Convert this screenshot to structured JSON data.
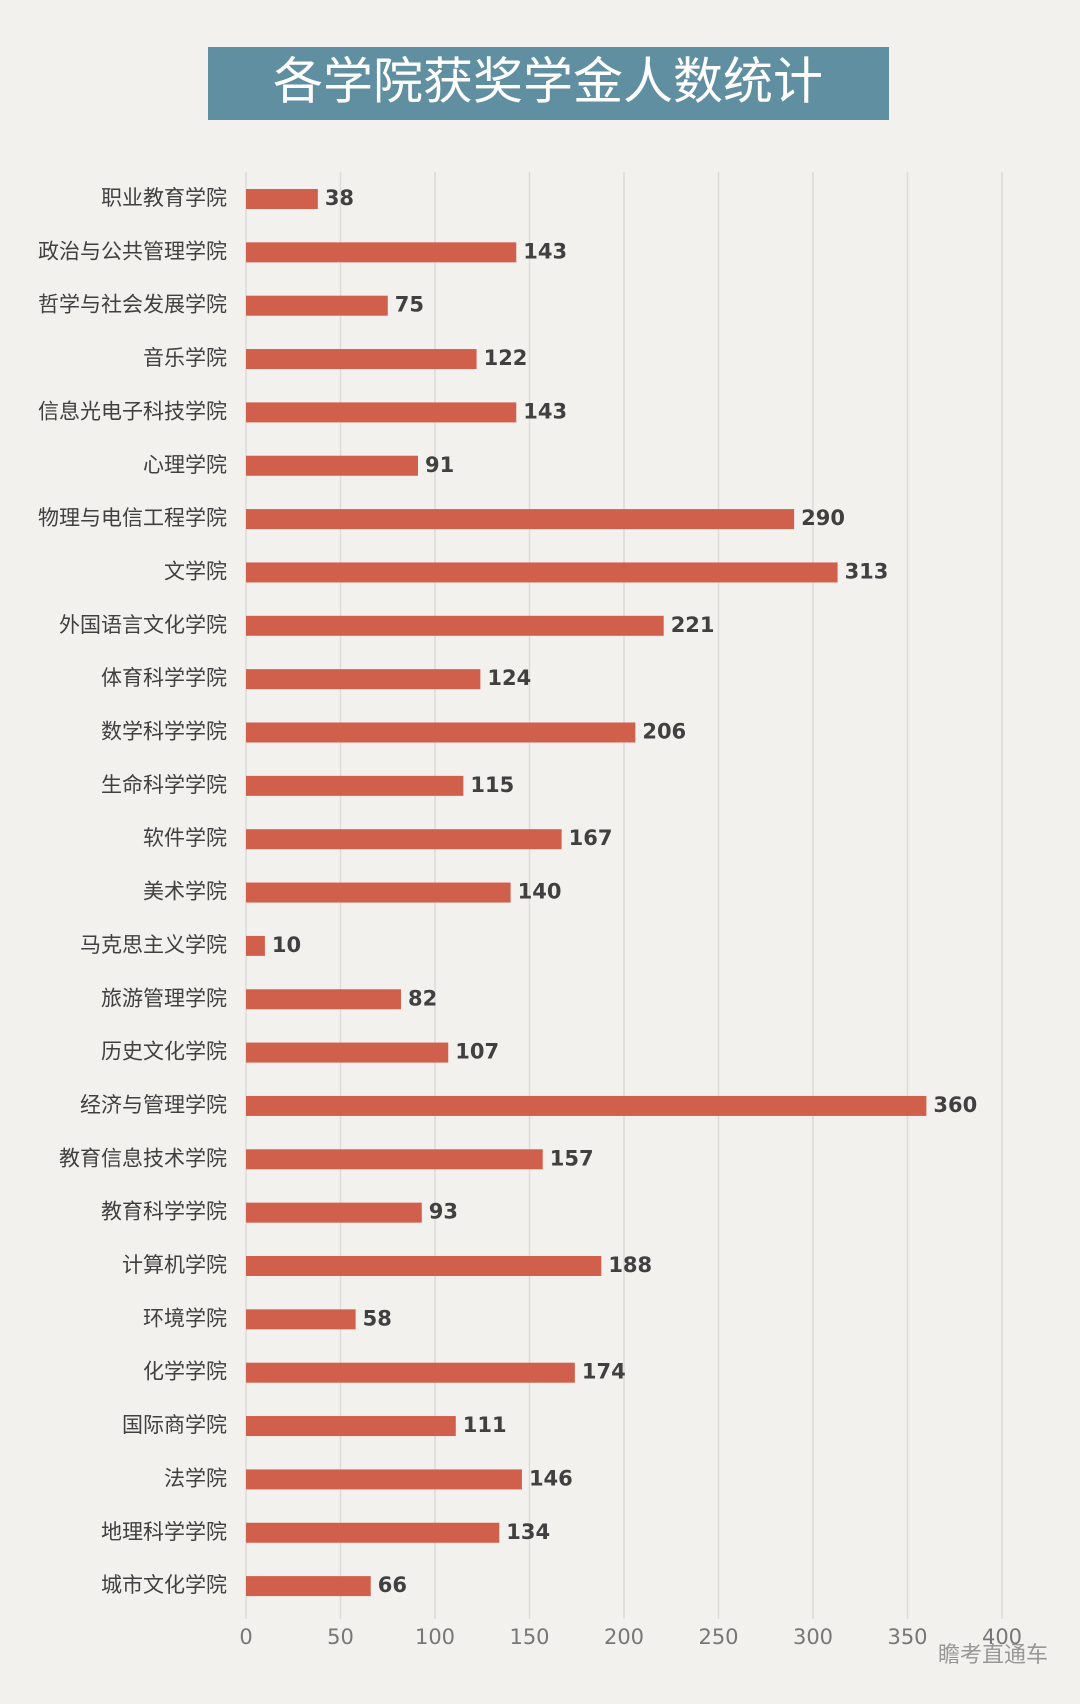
{
  "chart_data": {
    "type": "bar",
    "orientation": "horizontal",
    "title": "各学院获奖学金人数统计",
    "categories": [
      "职业教育学院",
      "政治与公共管理学院",
      "哲学与社会发展学院",
      "音乐学院",
      "信息光电子科技学院",
      "心理学院",
      "物理与电信工程学院",
      "文学院",
      "外国语言文化学院",
      "体育科学学院",
      "数学科学学院",
      "生命科学学院",
      "软件学院",
      "美术学院",
      "马克思主义学院",
      "旅游管理学院",
      "历史文化学院",
      "经济与管理学院",
      "教育信息技术学院",
      "教育科学学院",
      "计算机学院",
      "环境学院",
      "化学学院",
      "国际商学院",
      "法学院",
      "地理科学学院",
      "城市文化学院"
    ],
    "values": [
      38,
      143,
      75,
      122,
      143,
      91,
      290,
      313,
      221,
      124,
      206,
      115,
      167,
      140,
      10,
      82,
      107,
      360,
      157,
      93,
      188,
      58,
      174,
      111,
      146,
      134,
      66
    ],
    "color": "#d0604c",
    "xlim": [
      0,
      400
    ],
    "xticks": [
      0,
      50,
      100,
      150,
      200,
      250,
      300,
      350,
      400
    ],
    "grid": true,
    "watermark": "瞻考直通车"
  }
}
